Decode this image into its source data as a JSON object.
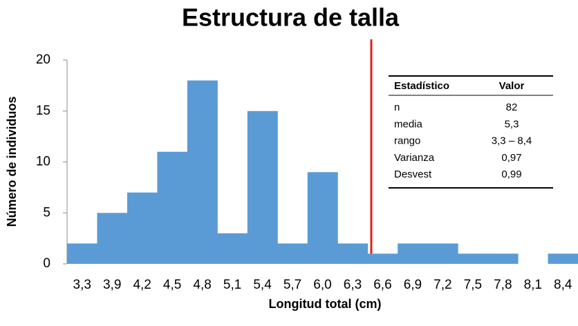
{
  "chart_data": {
    "type": "bar",
    "title": "Estructura de talla",
    "x_label": "Longitud total (cm)",
    "y_label": "Número de individuos",
    "categories": [
      "3,3",
      "3,9",
      "4,2",
      "4,5",
      "4,8",
      "5,1",
      "5,4",
      "5,7",
      "6,0",
      "6,3",
      "6,6",
      "6,9",
      "7,2",
      "7,5",
      "7,8",
      "8,1",
      "8,4"
    ],
    "values": [
      2,
      5,
      7,
      11,
      18,
      3,
      15,
      2,
      9,
      2,
      1,
      2,
      2,
      1,
      1,
      0,
      1
    ],
    "color": "#5b9bd5",
    "ylim": [
      0,
      20
    ],
    "yticks": [
      0,
      5,
      10,
      15,
      20
    ],
    "grid": false
  },
  "stats_table": {
    "header": [
      "Estadístico",
      "Valor"
    ],
    "rows": [
      [
        "n",
        "82"
      ],
      [
        "media",
        "5,3"
      ],
      [
        "rango",
        "3,3 – 8,4"
      ],
      [
        "Varianza",
        "0,97"
      ],
      [
        "Desvest",
        "0,99"
      ]
    ]
  }
}
